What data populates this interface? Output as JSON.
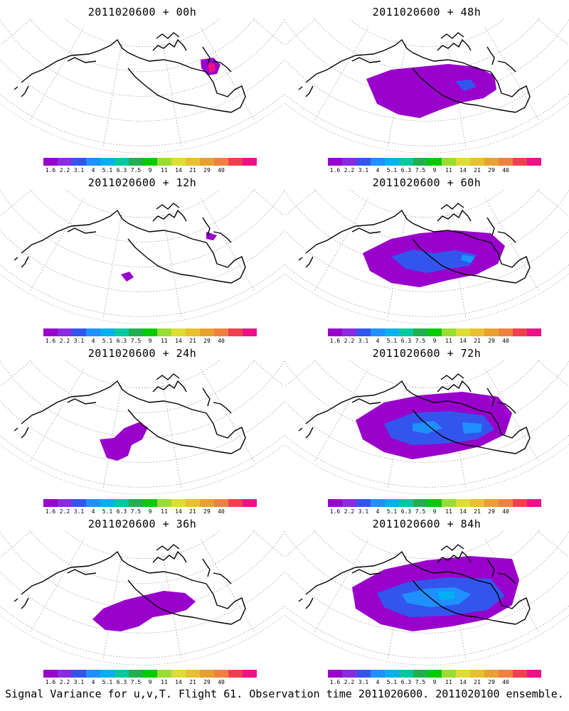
{
  "panels": [
    {
      "title": "2011020600 + 00h",
      "stage": 0
    },
    {
      "title": "2011020600 + 48h",
      "stage": 4
    },
    {
      "title": "2011020600 + 12h",
      "stage": 1
    },
    {
      "title": "2011020600 + 60h",
      "stage": 5
    },
    {
      "title": "2011020600 + 24h",
      "stage": 2
    },
    {
      "title": "2011020600 + 72h",
      "stage": 6
    },
    {
      "title": "2011020600 + 36h",
      "stage": 3
    },
    {
      "title": "2011020600 + 84h",
      "stage": 7
    }
  ],
  "colorbar": {
    "labels": [
      "1.6",
      "2.2",
      "3.1",
      "4",
      "5.1",
      "6.3",
      "7.5",
      "9",
      "11",
      "14",
      "21",
      "29",
      "40"
    ],
    "colors": [
      "#9900cc",
      "#8a2be2",
      "#3355ee",
      "#1e90ff",
      "#00b0f0",
      "#00c8a0",
      "#20b050",
      "#00cc00",
      "#99dd33",
      "#dddd33",
      "#e8c030",
      "#e8a030",
      "#f08040",
      "#f04050",
      "#ee1188"
    ]
  },
  "footer": "Signal Variance for u,v,T. Flight 61. Observation time 2011020600. 2011020100 ensemble."
}
